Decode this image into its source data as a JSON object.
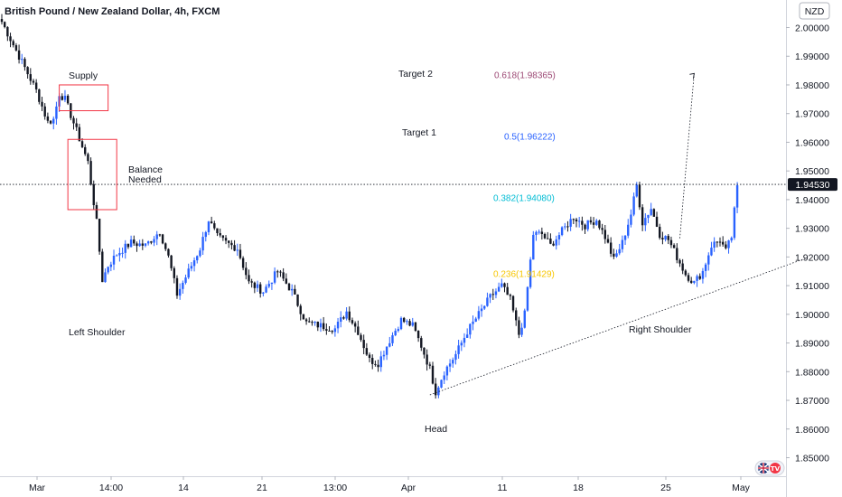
{
  "chart_data": {
    "type": "candlestick",
    "title": "British Pound / New Zealand Dollar, 4h, FXCM",
    "currency_badge": "NZD",
    "y_axis": {
      "ylim": [
        1.8443,
        2.0055
      ],
      "ticks": [
        "2.00000",
        "1.99000",
        "1.98000",
        "1.97000",
        "1.96000",
        "1.95000",
        "1.94000",
        "1.93000",
        "1.92000",
        "1.91000",
        "1.90000",
        "1.89000",
        "1.88000",
        "1.87000",
        "1.86000",
        "1.85000"
      ]
    },
    "x_axis": {
      "ticks": [
        "Mar",
        "14:00",
        "14",
        "21",
        "13:00",
        "Apr",
        "11",
        "18",
        "25",
        "May"
      ]
    },
    "last_price": "1.94530",
    "colors": {
      "up": "#2962ff",
      "down": "#131722",
      "supply_box": "#f23645"
    },
    "price_path": [
      [
        0,
        2.002
      ],
      [
        4,
        1.994
      ],
      [
        8,
        1.986
      ],
      [
        12,
        1.978
      ],
      [
        16,
        1.967
      ],
      [
        18,
        1.968
      ],
      [
        20,
        1.977
      ],
      [
        22,
        1.975
      ],
      [
        26,
        1.964
      ],
      [
        30,
        1.953
      ],
      [
        33,
        1.932
      ],
      [
        35,
        1.912
      ],
      [
        37,
        1.917
      ],
      [
        40,
        1.921
      ],
      [
        45,
        1.925
      ],
      [
        50,
        1.924
      ],
      [
        55,
        1.929
      ],
      [
        58,
        1.92
      ],
      [
        61,
        1.907
      ],
      [
        65,
        1.915
      ],
      [
        69,
        1.923
      ],
      [
        72,
        1.933
      ],
      [
        75,
        1.927
      ],
      [
        78,
        1.925
      ],
      [
        82,
        1.923
      ],
      [
        86,
        1.911
      ],
      [
        91,
        1.908
      ],
      [
        96,
        1.915
      ],
      [
        101,
        1.908
      ],
      [
        106,
        1.897
      ],
      [
        111,
        1.896
      ],
      [
        116,
        1.895
      ],
      [
        120,
        1.901
      ],
      [
        124,
        1.894
      ],
      [
        128,
        1.884
      ],
      [
        131,
        1.883
      ],
      [
        135,
        1.891
      ],
      [
        139,
        1.898
      ],
      [
        143,
        1.896
      ],
      [
        146,
        1.889
      ],
      [
        149,
        1.881
      ],
      [
        151,
        1.873
      ],
      [
        154,
        1.88
      ],
      [
        158,
        1.886
      ],
      [
        162,
        1.894
      ],
      [
        166,
        1.9
      ],
      [
        170,
        1.906
      ],
      [
        174,
        1.91
      ],
      [
        177,
        1.905
      ],
      [
        180,
        1.893
      ],
      [
        182,
        1.9
      ],
      [
        185,
        1.928
      ],
      [
        188,
        1.928
      ],
      [
        191,
        1.924
      ],
      [
        195,
        1.929
      ],
      [
        199,
        1.934
      ],
      [
        203,
        1.931
      ],
      [
        207,
        1.933
      ],
      [
        210,
        1.927
      ],
      [
        213,
        1.919
      ],
      [
        216,
        1.925
      ],
      [
        219,
        1.935
      ],
      [
        221,
        1.945
      ],
      [
        223,
        1.932
      ],
      [
        226,
        1.937
      ],
      [
        229,
        1.928
      ],
      [
        232,
        1.926
      ],
      [
        235,
        1.92
      ],
      [
        238,
        1.914
      ],
      [
        241,
        1.911
      ],
      [
        244,
        1.915
      ],
      [
        247,
        1.924
      ],
      [
        250,
        1.926
      ],
      [
        252,
        1.922
      ],
      [
        254,
        1.927
      ],
      [
        256,
        1.945
      ]
    ],
    "annotations": [
      {
        "label": "Supply",
        "type": "box"
      },
      {
        "label": "Balance\nNeeded",
        "type": "box"
      },
      {
        "label": "Left Shoulder",
        "price": 1.8975
      },
      {
        "label": "Head",
        "price": 1.859
      },
      {
        "label": "Right Shoulder",
        "price": 1.898
      },
      {
        "label": "Target 2",
        "price": 1.984
      },
      {
        "label": "Target 1",
        "price": 1.9636
      }
    ],
    "fibonacci": [
      {
        "label": "0.618(1.98365)",
        "price": 1.98365,
        "color": "#9c4874"
      },
      {
        "label": "0.5(1.96222)",
        "price": 1.96222,
        "color": "#2962ff"
      },
      {
        "label": "0.382(1.94080)",
        "price": 1.9408,
        "color": "#00bcd4"
      },
      {
        "label": "0.236(1.91429)",
        "price": 1.91429,
        "color": "#f7c600"
      }
    ],
    "trendlines": [
      {
        "name": "neckline",
        "from": [
          149,
          1.8719
        ],
        "to": [
          280,
          1.9196
        ]
      },
      {
        "name": "projection",
        "from": [
          236,
          1.9265
        ],
        "to": [
          241,
          1.984
        ]
      }
    ],
    "boxes": [
      {
        "name": "supply-box",
        "label_ref": "Supply",
        "x": [
          20,
          37
        ],
        "price": [
          1.98,
          1.971
        ]
      },
      {
        "name": "balance-box",
        "label_ref": "Balance\nNeeded",
        "x": [
          23,
          40
        ],
        "price": [
          1.961,
          1.9365
        ]
      }
    ]
  },
  "tv_badge": "TV"
}
